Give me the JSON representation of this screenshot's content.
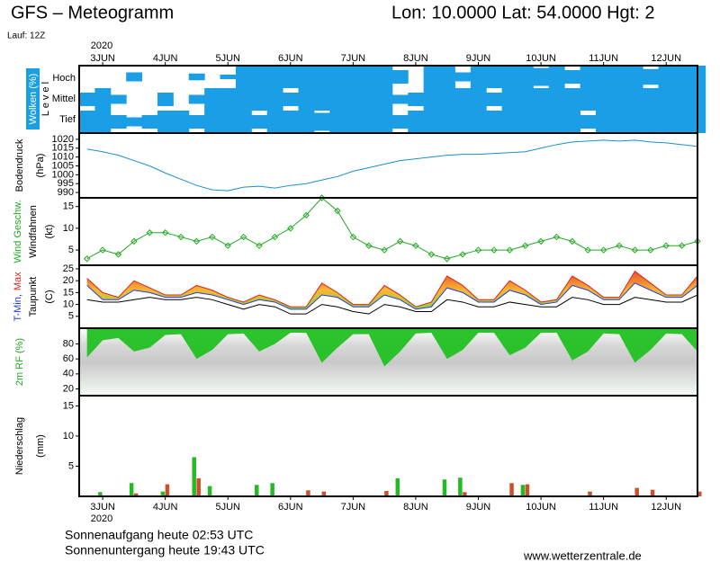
{
  "header": {
    "title": "GFS – Meteogramm",
    "location": "Lon: 10.0000 Lat: 54.0000 Hgt: 2",
    "run": "Lauf: 12Z"
  },
  "footer": {
    "sunrise": "Sonnenaufgang heute 02:53 UTC",
    "sunset": "Sonnenuntergang heute 19:43 UTC",
    "site": "www.wetterzentrale.de"
  },
  "time_axis": {
    "year": "2020",
    "xlim": [
      3,
      240
    ],
    "xticks": [
      {
        "value": 12,
        "label": "3JUN"
      },
      {
        "value": 36,
        "label": "4JUN"
      },
      {
        "value": 60,
        "label": "5JUN"
      },
      {
        "value": 84,
        "label": "6JUN"
      },
      {
        "value": 108,
        "label": "7JUN"
      },
      {
        "value": 132,
        "label": "8JUN"
      },
      {
        "value": 156,
        "label": "9JUN"
      },
      {
        "value": 180,
        "label": "10JUN"
      },
      {
        "value": 204,
        "label": "11JUN"
      },
      {
        "value": 228,
        "label": "12JUN"
      }
    ],
    "x": [
      6,
      12,
      18,
      24,
      30,
      36,
      42,
      48,
      54,
      60,
      66,
      72,
      78,
      84,
      90,
      96,
      102,
      108,
      114,
      120,
      126,
      132,
      138,
      144,
      150,
      156,
      162,
      168,
      174,
      180,
      186,
      192,
      198,
      204,
      210,
      216,
      222,
      228,
      234,
      240
    ]
  },
  "chart_data": [
    {
      "type": "cloud-levels",
      "label": "Wolken (%)",
      "level_label": "L e v e l",
      "series": [
        {
          "name": "Hoch",
          "color": "#1a9ee6",
          "values": [
            0,
            0,
            0,
            40,
            0,
            0,
            0,
            30,
            0,
            20,
            100,
            100,
            100,
            100,
            100,
            100,
            100,
            100,
            100,
            100,
            60,
            0,
            100,
            100,
            40,
            100,
            100,
            100,
            100,
            80,
            100,
            60,
            100,
            100,
            100,
            100,
            70,
            100,
            100,
            100
          ]
        },
        {
          "name": "Mittel",
          "color": "#1a9ee6",
          "values": [
            60,
            100,
            40,
            0,
            0,
            60,
            0,
            40,
            100,
            100,
            100,
            100,
            100,
            60,
            100,
            100,
            100,
            100,
            100,
            100,
            40,
            60,
            100,
            100,
            100,
            100,
            60,
            100,
            100,
            100,
            100,
            100,
            100,
            100,
            100,
            100,
            100,
            100,
            100,
            100
          ]
        },
        {
          "name": "Tief",
          "color": "#1a9ee6",
          "values": [
            100,
            100,
            60,
            40,
            60,
            100,
            100,
            60,
            100,
            100,
            100,
            60,
            100,
            100,
            100,
            80,
            100,
            100,
            100,
            100,
            60,
            100,
            100,
            100,
            100,
            100,
            100,
            100,
            100,
            100,
            100,
            100,
            60,
            100,
            100,
            100,
            100,
            100,
            100,
            100
          ]
        }
      ]
    },
    {
      "type": "line",
      "label": "Bodendruck",
      "unit": "(hPa)",
      "ylim": [
        987,
        1023.5
      ],
      "yticks": [
        990,
        995,
        1000,
        1005,
        1010,
        1015,
        1020
      ],
      "series": [
        {
          "color": "#1a8fd0",
          "values": [
            1014.5,
            1013,
            1011,
            1008,
            1005,
            1001,
            997.5,
            994,
            991.5,
            991,
            993,
            993.5,
            992.5,
            994,
            995,
            997,
            999,
            1002,
            1004,
            1006,
            1008,
            1009,
            1010,
            1011,
            1011.5,
            1011.5,
            1012,
            1012.5,
            1013,
            1015,
            1017,
            1018.5,
            1019,
            1019.5,
            1019,
            1019.5,
            1018.5,
            1018,
            1017,
            1016
          ]
        }
      ]
    },
    {
      "type": "line",
      "label": "Wind Geschw.",
      "label_color": "#22aa22",
      "label2": "Windfahnen",
      "unit": "(kt)",
      "ylim": [
        1.5,
        17
      ],
      "yticks": [
        5,
        10,
        15
      ],
      "markers": true,
      "series": [
        {
          "color": "#22aa22",
          "values": [
            3,
            5,
            4,
            7,
            9,
            9,
            8,
            7,
            8,
            6,
            8,
            6,
            8,
            10,
            13,
            17,
            14,
            8,
            6,
            5,
            7,
            6,
            4,
            3,
            4,
            5,
            5,
            5,
            6,
            7,
            8,
            7,
            5,
            5,
            6,
            5,
            5,
            6,
            6,
            7
          ]
        }
      ]
    },
    {
      "type": "band",
      "unit": "(C)",
      "ylim": [
        0,
        26.5
      ],
      "yticks": [
        5,
        10,
        15,
        20,
        25
      ],
      "fill": "#f5a623",
      "series": [
        {
          "name": "T-Min,",
          "color": "#2040e0",
          "values": [
            18,
            12,
            12,
            16,
            15,
            13,
            13,
            15,
            14,
            12,
            10,
            12,
            11,
            8,
            8,
            14,
            13,
            9,
            9,
            14,
            12,
            8,
            9,
            17,
            15,
            11,
            11,
            16,
            14,
            10,
            11,
            18,
            16,
            12,
            12,
            19,
            16,
            13,
            13,
            18
          ]
        },
        {
          "name": "Max",
          "color": "#e02020",
          "values": [
            21,
            15,
            13,
            20,
            17,
            14,
            14,
            18,
            16,
            13,
            11,
            14,
            12,
            9,
            9,
            19,
            15,
            10,
            10,
            18,
            14,
            9,
            11,
            22,
            18,
            12,
            12,
            20,
            16,
            11,
            12,
            22,
            18,
            13,
            13,
            24,
            19,
            14,
            14,
            22
          ]
        },
        {
          "name": "Taupunkt",
          "color": "#000000",
          "values": [
            12,
            11,
            11,
            12,
            13,
            12,
            12,
            13,
            12,
            10,
            8,
            10,
            9,
            6,
            6,
            10,
            9,
            7,
            6,
            10,
            9,
            7,
            7,
            12,
            11,
            9,
            9,
            11,
            10,
            9,
            9,
            13,
            12,
            10,
            10,
            13,
            12,
            11,
            11,
            14
          ]
        }
      ]
    },
    {
      "type": "area",
      "label": "2m RF (%)",
      "label_color": "#22aa22",
      "ylim": [
        11,
        101
      ],
      "yticks": [
        20,
        40,
        60,
        80
      ],
      "series": [
        {
          "color": "#22c022",
          "values": [
            62,
            85,
            88,
            70,
            75,
            92,
            93,
            60,
            72,
            93,
            94,
            70,
            80,
            95,
            95,
            55,
            75,
            93,
            93,
            50,
            70,
            94,
            95,
            60,
            72,
            95,
            95,
            65,
            75,
            95,
            95,
            58,
            70,
            94,
            93,
            55,
            72,
            94,
            93,
            70
          ]
        }
      ]
    },
    {
      "type": "bar",
      "label": "Niederschlag",
      "unit": "(mm)",
      "ylim": [
        0,
        16.7
      ],
      "yticks": [
        5,
        10,
        15
      ],
      "series": [
        {
          "color": "#22bb22",
          "values": [
            0,
            0.7,
            0,
            2.2,
            0,
            0.8,
            0,
            6.5,
            1.7,
            0,
            0,
            1.9,
            2.2,
            0,
            0,
            0,
            0,
            0,
            0,
            0,
            3,
            0,
            0,
            2.8,
            3.1,
            0,
            0,
            0,
            1.9,
            0,
            0,
            0,
            0,
            0,
            0,
            0,
            0,
            0,
            0,
            0
          ]
        },
        {
          "color": "#c8502a",
          "values": [
            0,
            0,
            0,
            0.5,
            0,
            2,
            0,
            3,
            0,
            0,
            0,
            0,
            0,
            0,
            1,
            0.8,
            0,
            0,
            0,
            0.9,
            0,
            0,
            0,
            0,
            0.7,
            0,
            0,
            2.2,
            2,
            0,
            0,
            0,
            0.8,
            0,
            0,
            1.4,
            1.1,
            0,
            0,
            0.8
          ]
        }
      ]
    }
  ]
}
